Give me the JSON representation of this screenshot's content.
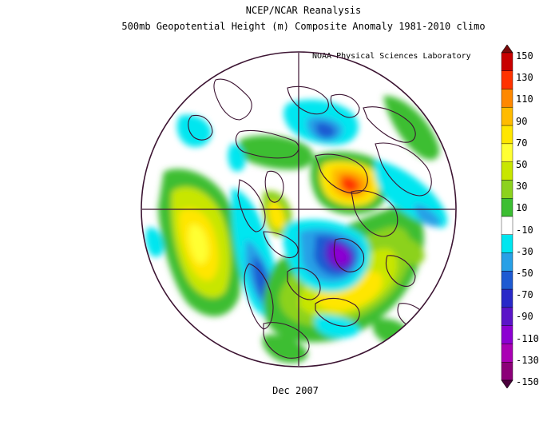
{
  "title_line1": "NCEP/NCAR Reanalysis",
  "title_line2": "500mb Geopotential Height (m) Composite Anomaly 1981-2010 climo",
  "credit": "NOAA Physical Sciences Laboratory",
  "footer": "Dec 2007",
  "colorbar": {
    "labels": [
      "150",
      "130",
      "110",
      "90",
      "70",
      "50",
      "30",
      "10",
      "-10",
      "-30",
      "-50",
      "-70",
      "-90",
      "-110",
      "-130",
      "-150"
    ],
    "colors": [
      "#7a0a0a",
      "#c80000",
      "#ff3300",
      "#ff8800",
      "#ffbb00",
      "#ffe600",
      "#ffff33",
      "#c8e600",
      "#8cd21e",
      "#3cbe32",
      "#ffffff",
      "#00e6f0",
      "#28a0e6",
      "#1e5ad2",
      "#2828c8",
      "#5a14c8",
      "#8c00d2",
      "#aa00b4",
      "#8c0078",
      "#4b003c"
    ]
  },
  "map": {
    "projection": "north polar stereographic",
    "outline_color": "#3c1432"
  }
}
